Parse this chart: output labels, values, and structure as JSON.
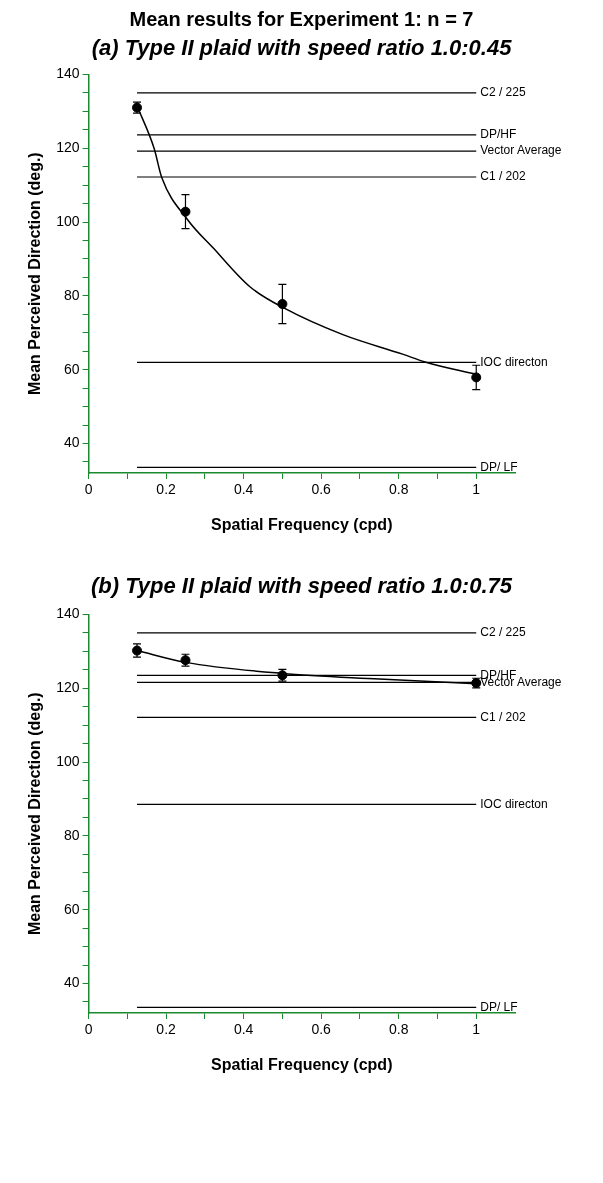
{
  "chart_data": [
    {
      "type": "scatter",
      "title": "Mean results for Experiment 1: n = 7",
      "subtitle": "(a) Type II plaid with speed ratio 1.0:0.45",
      "xlabel": "Spatial Frequency (cpd)",
      "ylabel": "Mean Perceived Direction (deg.)",
      "xlim": [
        0,
        1.1
      ],
      "xticks": [
        0,
        {
          "value": 0.1,
          "label": null
        },
        0.2,
        {
          "value": 0.3,
          "label": null
        },
        0.4,
        {
          "value": 0.5,
          "label": null
        },
        0.6,
        {
          "value": 0.7,
          "label": null
        },
        0.8,
        {
          "value": 0.9,
          "label": null
        },
        1
      ],
      "ylim": [
        32,
        140
      ],
      "yticks": [
        {
          "value": 35,
          "label": null
        },
        40,
        {
          "value": 45,
          "label": null
        },
        {
          "value": 50,
          "label": null
        },
        {
          "value": 55,
          "label": null
        },
        60,
        {
          "value": 65,
          "label": null
        },
        {
          "value": 70,
          "label": null
        },
        {
          "value": 75,
          "label": null
        },
        80,
        {
          "value": 85,
          "label": null
        },
        {
          "value": 90,
          "label": null
        },
        {
          "value": 95,
          "label": null
        },
        100,
        {
          "value": 105,
          "label": null
        },
        {
          "value": 110,
          "label": null
        },
        {
          "value": 115,
          "label": null
        },
        120,
        {
          "value": 125,
          "label": null
        },
        {
          "value": 130,
          "label": null
        },
        {
          "value": 135,
          "label": null
        },
        140
      ],
      "grid": false,
      "series": [
        {
          "type": "scatter",
          "color": "#000000",
          "marker": "circle",
          "x": [
            0.125,
            0.25,
            0.5,
            1
          ],
          "values": [
            131,
            102.8,
            77.8,
            57.9
          ],
          "errors": [
            1.5,
            4.6,
            5.3,
            3.3
          ]
        },
        {
          "type": "line",
          "color": "#000000",
          "marker": "none",
          "x": [
            0.125,
            0.169,
            0.189,
            0.255,
            0.323,
            0.417,
            0.506,
            0.656,
            0.81,
            0.87,
            1
          ],
          "values": [
            131.5,
            120,
            112,
            100.7,
            92.8,
            82.4,
            76.6,
            69.5,
            64.2,
            62,
            58.7
          ]
        }
      ],
      "ref_lines": [
        {
          "axis": "y",
          "value": 135,
          "label": "C2 / 225",
          "color": "#000000"
        },
        {
          "axis": "y",
          "value": 123.6,
          "label": "DP/HF",
          "color": "#000000"
        },
        {
          "axis": "y",
          "value": 119.2,
          "label": "Vector Average",
          "color": "#000000"
        },
        {
          "axis": "y",
          "value": 112.2,
          "label": "C1 / 202",
          "color": "#000000"
        },
        {
          "axis": "y",
          "value": 62,
          "label": "IOC directon",
          "color": "#000000"
        },
        {
          "axis": "y",
          "value": 33.5,
          "label": "DP/ LF",
          "color": "#000000"
        }
      ]
    },
    {
      "type": "scatter",
      "title": "(b) Type II plaid with speed ratio 1.0:0.75",
      "xlabel": "Spatial Frequency (cpd)",
      "ylabel": "Mean Perceived Direction (deg.)",
      "xlim": [
        0,
        1.1
      ],
      "xticks": [
        0,
        {
          "value": 0.1,
          "label": null
        },
        0.2,
        {
          "value": 0.3,
          "label": null
        },
        0.4,
        {
          "value": 0.5,
          "label": null
        },
        0.6,
        {
          "value": 0.7,
          "label": null
        },
        0.8,
        {
          "value": 0.9,
          "label": null
        },
        1
      ],
      "ylim": [
        32,
        140
      ],
      "yticks": [
        {
          "value": 35,
          "label": null
        },
        40,
        {
          "value": 45,
          "label": null
        },
        {
          "value": 50,
          "label": null
        },
        {
          "value": 55,
          "label": null
        },
        60,
        {
          "value": 65,
          "label": null
        },
        {
          "value": 70,
          "label": null
        },
        {
          "value": 75,
          "label": null
        },
        80,
        {
          "value": 85,
          "label": null
        },
        {
          "value": 90,
          "label": null
        },
        {
          "value": 95,
          "label": null
        },
        100,
        {
          "value": 105,
          "label": null
        },
        {
          "value": 110,
          "label": null
        },
        {
          "value": 115,
          "label": null
        },
        120,
        {
          "value": 125,
          "label": null
        },
        {
          "value": 130,
          "label": null
        },
        {
          "value": 135,
          "label": null
        },
        140
      ],
      "grid": false,
      "series": [
        {
          "type": "scatter",
          "color": "#000000",
          "marker": "circle",
          "x": [
            0.125,
            0.25,
            0.5,
            1
          ],
          "values": [
            130.2,
            127.6,
            123.5,
            121.4
          ],
          "errors": [
            1.8,
            1.6,
            1.6,
            1.3
          ]
        },
        {
          "type": "line",
          "color": "#000000",
          "marker": "none",
          "x": [
            0.125,
            0.25,
            0.5,
            0.75,
            1
          ],
          "values": [
            130.2,
            127,
            124,
            122.5,
            121.2
          ]
        }
      ],
      "ref_lines": [
        {
          "axis": "y",
          "value": 135,
          "label": "C2 / 225",
          "color": "#000000"
        },
        {
          "axis": "y",
          "value": 123.5,
          "label": "DP/HF",
          "color": "#000000"
        },
        {
          "axis": "y",
          "value": 121.6,
          "label": "Vector Average",
          "color": "#000000"
        },
        {
          "axis": "y",
          "value": 112.1,
          "label": "C1 / 202",
          "color": "#000000"
        },
        {
          "axis": "y",
          "value": 88.5,
          "label": "IOC directon",
          "color": "#000000"
        },
        {
          "axis": "y",
          "value": 33.5,
          "label": "DP/ LF",
          "color": "#000000"
        }
      ]
    }
  ]
}
